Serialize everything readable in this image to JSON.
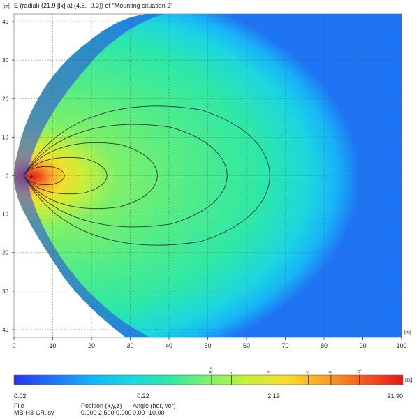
{
  "chart_data": {
    "type": "heatmap",
    "title": "E (radial) (21.9 [lx] at (4.5, -0.3)) of \"Mounting situation   2\"",
    "xlabel": "[m]",
    "ylabel": "[m]",
    "xlim": [
      0,
      100
    ],
    "ylim": [
      -42,
      42
    ],
    "x_ticks": [
      0,
      10,
      20,
      30,
      40,
      50,
      60,
      70,
      80,
      90,
      100
    ],
    "y_ticks": [
      40,
      30,
      20,
      10,
      0,
      -10,
      -20,
      -30,
      -40
    ],
    "x_tick_labels": [
      "0",
      "10",
      "20",
      "30",
      "40",
      "50",
      "60",
      "70",
      "80",
      "90",
      "100"
    ],
    "y_tick_labels": [
      "40",
      "30",
      "20",
      "10",
      "0",
      "10",
      "20",
      "30",
      "40"
    ],
    "grid": true,
    "max_value": 21.9,
    "max_location": [
      4.5,
      -0.3
    ],
    "contours": [
      {
        "level": 10,
        "x_max": 13,
        "half_width": 2.5
      },
      {
        "level": 6,
        "x_max": 24,
        "half_width": 5
      },
      {
        "level": 4,
        "x_max": 37,
        "half_width": 9
      },
      {
        "level": 2,
        "x_max": 55,
        "half_width": 14
      },
      {
        "level": 1,
        "x_max": 66,
        "half_width": 19
      }
    ],
    "colorbar": {
      "unit": "[lx]",
      "labels": [
        "0.02",
        "0.22",
        "2.19",
        "21.90"
      ],
      "markers": [
        "0.7",
        "1",
        "2",
        "4",
        "6",
        "10"
      ],
      "colors": [
        "#2a34e6",
        "#1f74f4",
        "#17b4f8",
        "#1cd6e0",
        "#2ee8a8",
        "#7ff06a",
        "#c8ef3a",
        "#f6dc2c",
        "#f7a22a",
        "#f25a20",
        "#e01818"
      ]
    }
  },
  "footer": {
    "file_label": "File",
    "file_value": "MB-H3-CR.lsv",
    "position_label": "Position (x,y,z)",
    "position_value": "0.000   2.500   0.000",
    "angle_label": "Angle (hor, ver)",
    "angle_value": "0.00  -10.00"
  }
}
